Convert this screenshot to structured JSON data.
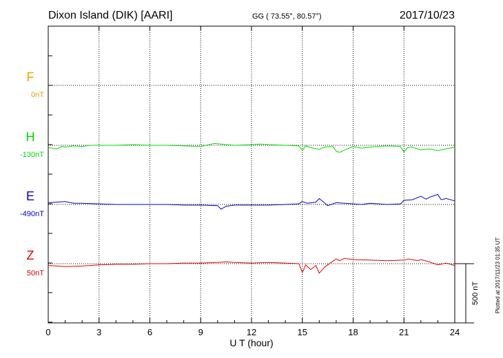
{
  "header": {
    "station": "Dixon Island (DIK)  [AARI]",
    "coords": "GG ( 73.55°,  80.57°)",
    "date": "2017/10/23"
  },
  "side_note": "Plotted at 2017/11/23 01:35 UT",
  "scale_bar_label": "500 nT",
  "colors": {
    "F": "#f0a000",
    "H": "#00dd00",
    "E": "#0000cc",
    "Z": "#dd0000"
  },
  "chart_data": {
    "type": "line",
    "xlabel": "U T (hour)",
    "xlim": [
      0,
      24
    ],
    "x_ticks": [
      "0",
      "3",
      "6",
      "9",
      "12",
      "15",
      "18",
      "21",
      "24"
    ],
    "scale_nT": 500,
    "series": [
      {
        "name": "F",
        "baseline_label": "0nT",
        "color": "#f0a000",
        "x": [],
        "values": []
      },
      {
        "name": "H",
        "baseline_label": "-130nT",
        "color": "#00dd00",
        "x": [
          0,
          0.5,
          0.8,
          1,
          1.5,
          2,
          2.5,
          3,
          4,
          5,
          6,
          7,
          8,
          9,
          9.8,
          10.2,
          10.5,
          11,
          12,
          12.5,
          13,
          14,
          14.8,
          15,
          15.2,
          15.5,
          16,
          16.3,
          16.8,
          17,
          17.2,
          17.5,
          18,
          18.5,
          19,
          20,
          20.8,
          21,
          21.2,
          21.5,
          22,
          22.5,
          23,
          23.5,
          24
        ],
        "values": [
          -20,
          -30,
          -10,
          -15,
          -5,
          -10,
          0,
          0,
          0,
          5,
          0,
          0,
          -5,
          -10,
          15,
          10,
          5,
          0,
          5,
          10,
          5,
          0,
          -5,
          -45,
          -5,
          -20,
          -35,
          -15,
          -10,
          -50,
          -60,
          -40,
          -10,
          -25,
          -15,
          -5,
          -10,
          -60,
          -20,
          -15,
          -40,
          -30,
          -45,
          -30,
          -15
        ]
      },
      {
        "name": "E",
        "baseline_label": "-490nT",
        "color": "#0000cc",
        "x": [
          0,
          0.5,
          1,
          1.5,
          2,
          3,
          4,
          5,
          6,
          7,
          8,
          9,
          10,
          10.2,
          10.5,
          11,
          12,
          13,
          14,
          14.8,
          15,
          15.3,
          15.8,
          16,
          16.3,
          16.5,
          17,
          17.5,
          18,
          18.5,
          19,
          20,
          20.8,
          21,
          21.5,
          22,
          22.3,
          22.5,
          23,
          23.2,
          23.5,
          24
        ],
        "values": [
          15,
          20,
          25,
          10,
          10,
          5,
          0,
          0,
          0,
          0,
          -5,
          -5,
          -10,
          -40,
          -15,
          -5,
          -5,
          -5,
          0,
          5,
          25,
          10,
          20,
          50,
          15,
          -10,
          15,
          10,
          5,
          0,
          10,
          0,
          5,
          35,
          40,
          70,
          45,
          60,
          85,
          40,
          50,
          30
        ]
      },
      {
        "name": "Z",
        "baseline_label": "50nT",
        "color": "#dd0000",
        "x": [
          0,
          0.5,
          1,
          2,
          3,
          4,
          5,
          6,
          7,
          8,
          9,
          10,
          10.5,
          11,
          12,
          13,
          14,
          14.8,
          15,
          15.2,
          15.5,
          15.8,
          16,
          16.3,
          16.5,
          17,
          17.2,
          17.5,
          18,
          19,
          20,
          21,
          21.3,
          21.8,
          22,
          22.5,
          23,
          23.5,
          24
        ],
        "values": [
          -15,
          -20,
          -25,
          -20,
          -10,
          -5,
          -5,
          0,
          0,
          5,
          5,
          10,
          15,
          10,
          5,
          10,
          5,
          0,
          -75,
          -10,
          -50,
          -15,
          -80,
          -30,
          -10,
          40,
          25,
          45,
          35,
          30,
          25,
          30,
          40,
          25,
          35,
          15,
          -10,
          5,
          -15
        ]
      }
    ]
  }
}
